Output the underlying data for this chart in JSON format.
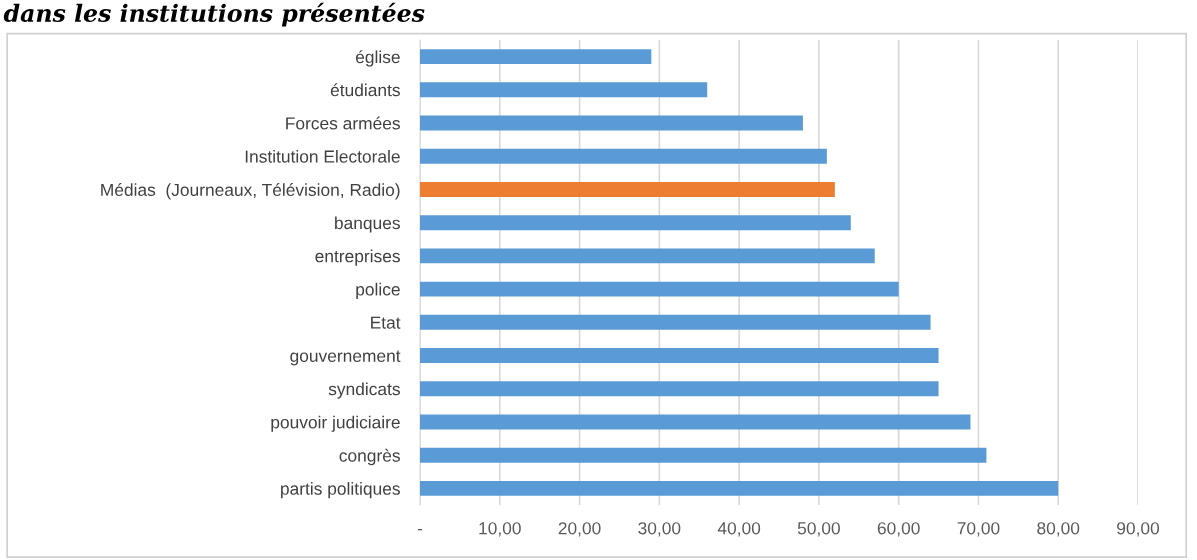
{
  "chart_data": {
    "type": "bar",
    "orientation": "horizontal",
    "title": "dans les institutions présentées",
    "categories": [
      "église",
      "étudiants",
      "Forces armées",
      "Institution Electorale",
      "Médias  (Journeaux, Télévision, Radio)",
      "banques",
      "entreprises",
      "police",
      "Etat",
      "gouvernement",
      "syndicats",
      "pouvoir judiciaire",
      "congrès",
      "partis politiques"
    ],
    "values": [
      29,
      36,
      48,
      51,
      52,
      54,
      57,
      60,
      64,
      65,
      65,
      69,
      71,
      80
    ],
    "colors": [
      "#5b9bd5",
      "#5b9bd5",
      "#5b9bd5",
      "#5b9bd5",
      "#ed7d31",
      "#5b9bd5",
      "#5b9bd5",
      "#5b9bd5",
      "#5b9bd5",
      "#5b9bd5",
      "#5b9bd5",
      "#5b9bd5",
      "#5b9bd5",
      "#5b9bd5"
    ],
    "xlim": [
      0,
      90
    ],
    "xticks": [
      {
        "value": 0,
        "label": "-"
      },
      {
        "value": 10,
        "label": "10,00"
      },
      {
        "value": 20,
        "label": "20,00"
      },
      {
        "value": 30,
        "label": "30,00"
      },
      {
        "value": 40,
        "label": "40,00"
      },
      {
        "value": 50,
        "label": "50,00"
      },
      {
        "value": 60,
        "label": "60,00"
      },
      {
        "value": 70,
        "label": "70,00"
      },
      {
        "value": 80,
        "label": "80,00"
      },
      {
        "value": 90,
        "label": "90,00"
      }
    ],
    "grid": "x"
  }
}
